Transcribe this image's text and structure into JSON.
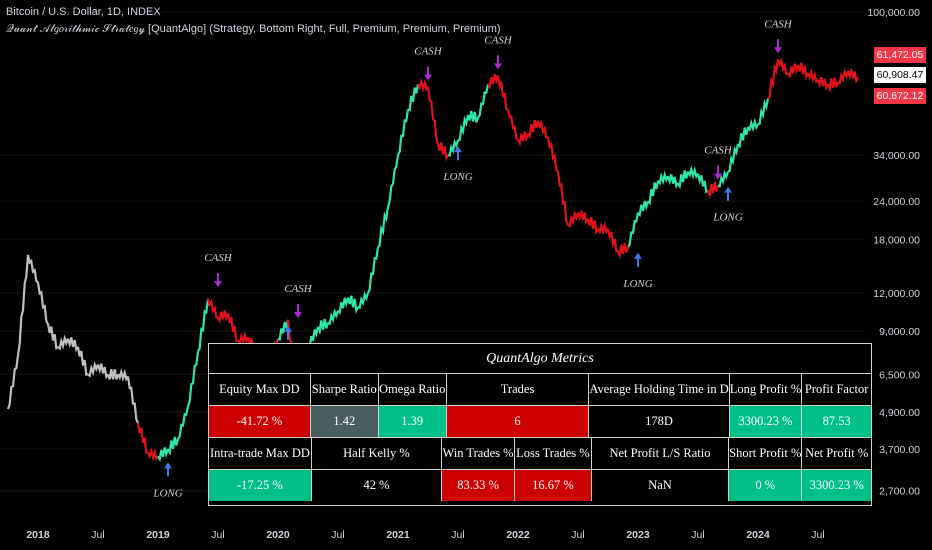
{
  "header": {
    "title": "Bitcoin / U.S. Dollar, 1D, INDEX",
    "subtitle": "𝒬𝓊𝒶𝓃𝓉 𝒜𝓁𝑔𝑜𝓇𝒾𝓉𝒽𝓂𝒾𝒸 𝒮𝓉𝓇𝒶𝓉𝑒𝑔𝓎 [QuantAlgo] (Strategy, Bottom Right, Full, Premium, Premium, Premium)"
  },
  "price_tags": {
    "high": "61,472.05",
    "last": "60,908.47",
    "low": "60,672.12"
  },
  "colors": {
    "bull": "#2ee6a8",
    "bear": "#e0121b",
    "pre": "#bfbfbf",
    "long_arrow": "#3d7bf0",
    "cash_arrow": "#b02ad6",
    "bg": "#000000"
  },
  "chart_data": {
    "type": "line",
    "y_scale": "log",
    "ylim": [
      2300,
      100000
    ],
    "xlim": [
      "2017-10",
      "2024-11"
    ],
    "x_ticks": [
      "2018",
      "Jul",
      "2019",
      "Jul",
      "2020",
      "Jul",
      "2021",
      "Jul",
      "2022",
      "Jul",
      "2023",
      "Jul",
      "2024",
      "Jul"
    ],
    "y_ticks": [
      "100,000.00",
      "34,000.00",
      "24,000.00",
      "18,000.00",
      "12,000.00",
      "9,000.00",
      "6,500.00",
      "4,900.00",
      "3,700.00",
      "2,700.00"
    ],
    "y_tick_values": [
      100000,
      34000,
      24000,
      18000,
      12000,
      9000,
      6500,
      4900,
      3700,
      2700
    ],
    "series": [
      {
        "x": [
          "2017-10",
          "2017-11",
          "2017-12",
          "2018-01",
          "2018-02",
          "2018-03",
          "2018-04",
          "2018-05",
          "2018-06",
          "2018-07",
          "2018-08",
          "2018-09",
          "2018-10",
          "2018-11",
          "2018-12",
          "2019-01",
          "2019-02",
          "2019-03",
          "2019-04",
          "2019-05",
          "2019-06",
          "2019-07",
          "2019-08",
          "2019-09",
          "2019-10",
          "2019-11",
          "2019-12",
          "2020-01",
          "2020-02",
          "2020-03",
          "2020-04",
          "2020-05",
          "2020-06",
          "2020-07",
          "2020-08",
          "2020-09",
          "2020-10",
          "2020-11",
          "2020-12",
          "2021-01",
          "2021-02",
          "2021-03",
          "2021-04",
          "2021-05",
          "2021-06",
          "2021-07",
          "2021-08",
          "2021-09",
          "2021-10",
          "2021-11",
          "2021-12",
          "2022-01",
          "2022-02",
          "2022-03",
          "2022-04",
          "2022-05",
          "2022-06",
          "2022-07",
          "2022-08",
          "2022-09",
          "2022-10",
          "2022-11",
          "2022-12",
          "2023-01",
          "2023-02",
          "2023-03",
          "2023-04",
          "2023-05",
          "2023-06",
          "2023-07",
          "2023-08",
          "2023-09",
          "2023-10",
          "2023-11",
          "2023-12",
          "2024-01",
          "2024-02",
          "2024-03",
          "2024-04",
          "2024-05",
          "2024-06",
          "2024-07",
          "2024-08",
          "2024-09",
          "2024-10",
          "2024-11"
        ],
        "y": [
          5000,
          7500,
          16000,
          13000,
          9500,
          8000,
          8500,
          8000,
          6500,
          7000,
          6500,
          6500,
          6400,
          4500,
          3600,
          3500,
          3700,
          4000,
          5100,
          7700,
          11500,
          10000,
          10300,
          8400,
          8600,
          7700,
          7200,
          8500,
          9800,
          5200,
          8000,
          9300,
          9600,
          10500,
          11600,
          10800,
          12000,
          17000,
          23000,
          34000,
          48000,
          58000,
          57000,
          37000,
          34000,
          38000,
          46000,
          45000,
          58000,
          62000,
          48000,
          38000,
          40000,
          44000,
          39000,
          30000,
          20000,
          22000,
          21000,
          19500,
          19500,
          16500,
          17000,
          22000,
          24000,
          28000,
          29000,
          27500,
          30000,
          29500,
          26000,
          27000,
          30000,
          37000,
          42000,
          43000,
          52000,
          70000,
          63000,
          67000,
          63000,
          60000,
          58000,
          59000,
          64000,
          60908
        ]
      }
    ],
    "signals": [
      {
        "label": "LONG",
        "date": "2019-02",
        "price": 3500
      },
      {
        "label": "CASH",
        "date": "2019-07",
        "price": 12000
      },
      {
        "label": "LONG",
        "date": "2020-02",
        "price": 9800
      },
      {
        "label": "CASH",
        "date": "2020-03",
        "price": 9500
      },
      {
        "label": "LONG",
        "date": "2020-04",
        "price": 6300
      },
      {
        "label": "CASH",
        "date": "2021-04",
        "price": 57000
      },
      {
        "label": "LONG",
        "date": "2021-07",
        "price": 38000
      },
      {
        "label": "CASH",
        "date": "2021-11",
        "price": 62000
      },
      {
        "label": "LONG",
        "date": "2023-01",
        "price": 17000
      },
      {
        "label": "CASH",
        "date": "2023-09",
        "price": 27000
      },
      {
        "label": "LONG",
        "date": "2023-10",
        "price": 28000
      },
      {
        "label": "CASH",
        "date": "2024-03",
        "price": 70000
      }
    ]
  },
  "metrics": {
    "title": "QuantAlgo Metrics",
    "row1_headers": [
      "Equity Max DD",
      "Sharpe Ratio",
      "Omega Ratio",
      "Trades",
      "Average Holding Time in D",
      "Long Profit %",
      "Profit Factor"
    ],
    "row1_values": [
      "-41.72 %",
      "1.42",
      "1.39",
      "6",
      "178D",
      "3300.23 %",
      "87.53"
    ],
    "row2_headers": [
      "Intra-trade Max DD",
      "Half Kelly %",
      "Win Trades %",
      "Loss Trades %",
      "Net Profit L/S Ratio",
      "Short Profit %",
      "Net Profit %"
    ],
    "row2_values": [
      "-17.25 %",
      "42 %",
      "83.33 %",
      "16.67 %",
      "NaN",
      "0 %",
      "3300.23 %"
    ]
  }
}
